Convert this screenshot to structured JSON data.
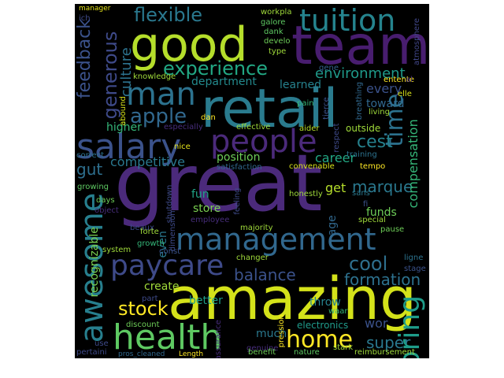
{
  "wordcloud": {
    "background": "#000000",
    "palette": [
      "#440154",
      "#3b528b",
      "#21918c",
      "#5ec962",
      "#fde725"
    ],
    "words": [
      {
        "text": "great",
        "color": "#4b2a7b"
      },
      {
        "text": "amazing",
        "color": "#d4e21a"
      },
      {
        "text": "retail",
        "color": "#2a7b8e"
      },
      {
        "text": "team",
        "color": "#481d6f"
      },
      {
        "text": "good",
        "color": "#b5de2b"
      },
      {
        "text": "management",
        "color": "#31688e"
      },
      {
        "text": "people",
        "color": "#4b2a7b"
      },
      {
        "text": "health",
        "color": "#5ec962"
      },
      {
        "text": "salary",
        "color": "#3b528b"
      },
      {
        "text": "awesome",
        "color": "#277f8e"
      },
      {
        "text": "tuition",
        "color": "#25848e"
      },
      {
        "text": "man",
        "color": "#2c728e"
      },
      {
        "text": "paycare",
        "color": "#3e4a89"
      },
      {
        "text": "home",
        "color": "#fde725"
      },
      {
        "text": "time",
        "color": "#2c728e"
      },
      {
        "text": "experience",
        "color": "#22a884"
      },
      {
        "text": "flexible",
        "color": "#2a788e"
      },
      {
        "text": "apple",
        "color": "#31688e"
      },
      {
        "text": "stock",
        "color": "#fde725"
      },
      {
        "text": "cool",
        "color": "#2e6f8e"
      },
      {
        "text": "balance",
        "color": "#3b528b"
      },
      {
        "text": "marque",
        "color": "#2a788e"
      },
      {
        "text": "cest",
        "color": "#26828e"
      },
      {
        "text": "super",
        "color": "#2a788e"
      },
      {
        "text": "formation",
        "color": "#2d718e"
      },
      {
        "text": "generous",
        "color": "#3e4a89"
      },
      {
        "text": "culture",
        "color": "#2c728e"
      },
      {
        "text": "feedback",
        "color": "#3b528b"
      },
      {
        "text": "gut",
        "color": "#2e6f8e"
      },
      {
        "text": "boring",
        "color": "#1e9c89"
      },
      {
        "text": "competitive",
        "color": "#2a788e"
      },
      {
        "text": "compensation",
        "color": "#35b779"
      },
      {
        "text": "environment",
        "color": "#1f9a8a"
      },
      {
        "text": "department",
        "color": "#238a8d"
      },
      {
        "text": "learned",
        "color": "#26828e"
      },
      {
        "text": "career",
        "color": "#22a884"
      },
      {
        "text": "position",
        "color": "#6ece58"
      },
      {
        "text": "store",
        "color": "#7ad151"
      },
      {
        "text": "fun",
        "color": "#20a386"
      },
      {
        "text": "get",
        "color": "#b5de2b"
      },
      {
        "text": "create",
        "color": "#a0da39"
      },
      {
        "text": "better",
        "color": "#1f9e89"
      },
      {
        "text": "recognizable",
        "color": "#7ad151"
      },
      {
        "text": "even",
        "color": "#2a788e"
      },
      {
        "text": "age",
        "color": "#31688e"
      },
      {
        "text": "funds",
        "color": "#6ece58"
      },
      {
        "text": "throw",
        "color": "#26828e"
      },
      {
        "text": "much",
        "color": "#2a788e"
      },
      {
        "text": "electronics",
        "color": "#1f9a8a"
      },
      {
        "text": "wor",
        "color": "#3b528b"
      },
      {
        "text": "every",
        "color": "#3b528b"
      },
      {
        "text": "toward",
        "color": "#31688e"
      },
      {
        "text": "higher",
        "color": "#35b779"
      },
      {
        "text": "knowledge",
        "color": "#9fda3a"
      },
      {
        "text": "workpla",
        "color": "#9fda3a"
      },
      {
        "text": "galore",
        "color": "#5ec962"
      },
      {
        "text": "dank",
        "color": "#5ec962"
      },
      {
        "text": "develo",
        "color": "#6ece58"
      },
      {
        "text": "type",
        "color": "#9fda3a"
      },
      {
        "text": "gene",
        "color": "#33638d"
      },
      {
        "text": "entente",
        "color": "#fde725"
      },
      {
        "text": "elle",
        "color": "#d8e219"
      },
      {
        "text": "al",
        "color": "#472d7b"
      },
      {
        "text": "atmosphere",
        "color": "#404688"
      },
      {
        "text": "breathing",
        "color": "#31688e"
      },
      {
        "text": "living",
        "color": "#9fda3a"
      },
      {
        "text": "pain",
        "color": "#35b779"
      },
      {
        "text": "dan",
        "color": "#fde725"
      },
      {
        "text": "abound",
        "color": "#d8e219"
      },
      {
        "text": "especially",
        "color": "#472d7b"
      },
      {
        "text": "effective",
        "color": "#9fda3a"
      },
      {
        "text": "aider",
        "color": "#b5de2b"
      },
      {
        "text": "tierce",
        "color": "#3b528b"
      },
      {
        "text": "outside",
        "color": "#9fda3a"
      },
      {
        "text": "respect",
        "color": "#3e4a89"
      },
      {
        "text": "training",
        "color": "#2c728e"
      },
      {
        "text": "tempo",
        "color": "#fde725"
      },
      {
        "text": "nice",
        "color": "#e5e419"
      },
      {
        "text": "satisfaction",
        "color": "#31688e"
      },
      {
        "text": "convenable",
        "color": "#d8e219"
      },
      {
        "text": "correct",
        "color": "#2c728e"
      },
      {
        "text": "growing",
        "color": "#5ec962"
      },
      {
        "text": "shutdown",
        "color": "#3e4a89"
      },
      {
        "text": "feeling",
        "color": "#3e4a89"
      },
      {
        "text": "honestly",
        "color": "#9fda3a"
      },
      {
        "text": "sans",
        "color": "#2a788e"
      },
      {
        "text": "fi",
        "color": "#3b528b"
      },
      {
        "text": "special",
        "color": "#9fda3a"
      },
      {
        "text": "days",
        "color": "#6ece58"
      },
      {
        "text": "dimension",
        "color": "#3e4a89"
      },
      {
        "text": "employee",
        "color": "#472d7b"
      },
      {
        "text": "majority",
        "color": "#9fda3a"
      },
      {
        "text": "pause",
        "color": "#6ece58"
      },
      {
        "text": "object",
        "color": "#472d7b"
      },
      {
        "text": "beaux",
        "color": "#3e4a89"
      },
      {
        "text": "forte",
        "color": "#9fda3a"
      },
      {
        "text": "growth",
        "color": "#35b779"
      },
      {
        "text": "system",
        "color": "#9fda3a"
      },
      {
        "text": "const",
        "color": "#3b528b"
      },
      {
        "text": "changer",
        "color": "#9fda3a"
      },
      {
        "text": "ligne",
        "color": "#2c728e"
      },
      {
        "text": "stage",
        "color": "#3b528b"
      },
      {
        "text": "part",
        "color": "#3e4a89"
      },
      {
        "text": "assurance",
        "color": "#472d7b"
      },
      {
        "text": "pression",
        "color": "#fde725"
      },
      {
        "text": "waar",
        "color": "#35b779"
      },
      {
        "text": "discount",
        "color": "#6ece58"
      },
      {
        "text": "use",
        "color": "#3e4a89"
      },
      {
        "text": "genuine",
        "color": "#472d7b"
      },
      {
        "text": "benefit",
        "color": "#6ece58"
      },
      {
        "text": "nature",
        "color": "#5ec962"
      },
      {
        "text": "stark",
        "color": "#9fda3a"
      },
      {
        "text": "reimbursement",
        "color": "#9fda3a"
      },
      {
        "text": "pertaini",
        "color": "#3e4a89"
      },
      {
        "text": "pros_cleaned",
        "color": "#31688e"
      },
      {
        "text": "Length",
        "color": "#fde725"
      },
      {
        "text": "manager",
        "color": "#e5e419"
      },
      {
        "text": "ich",
        "color": "#3e4a89"
      }
    ]
  }
}
